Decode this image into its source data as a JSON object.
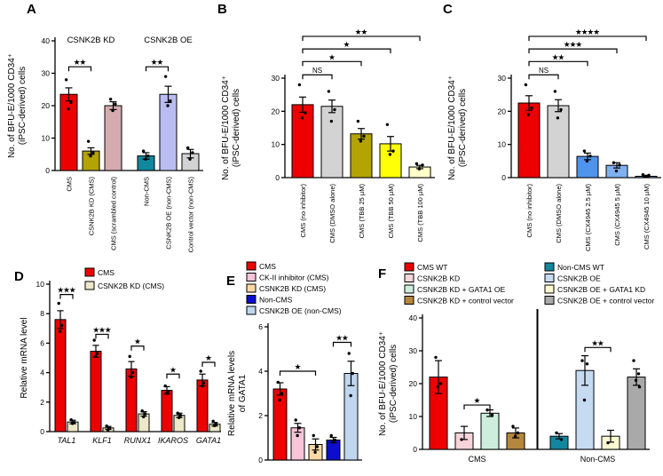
{
  "figure": {
    "background": "#ffffff",
    "text_color": "#000000"
  },
  "panels": [
    {
      "label": "A",
      "chart_data": {
        "type": "bar",
        "ylabel_lines": [
          "No. of BFU-E/1000 CD34⁺",
          "(iPSC-derived) cells"
        ],
        "ylim": [
          0,
          40
        ],
        "yticks": [
          0,
          10,
          20,
          30,
          40
        ],
        "group_titles": [
          {
            "text": "CSNK2B KD",
            "from": 0,
            "to": 2
          },
          {
            "text": "CSNK2B OE",
            "from": 3,
            "to": 5
          }
        ],
        "bars": [
          {
            "label": "CMS",
            "value": 23.5,
            "err": 2,
            "color": "#ee0000",
            "dots": [
              28,
              21,
              19
            ]
          },
          {
            "label": "CSNK2B KD (CMS)",
            "value": 6,
            "err": 1,
            "color": "#b3a303",
            "dots": [
              9,
              5.5,
              4.5
            ]
          },
          {
            "label": "CMS (scrambled control)",
            "value": 20,
            "err": 1.2,
            "color": "#d4abae",
            "dots": [
              22,
              20.5,
              18.5
            ]
          },
          {
            "label": "Non-CMS",
            "value": 4.5,
            "err": 1,
            "color": "#12889e",
            "dots": [
              6,
              4.5,
              3.5
            ],
            "gap": 12
          },
          {
            "label": "CSNK2B OE (non-CMS)",
            "value": 23.5,
            "err": 2.5,
            "color": "#b9bdf2",
            "dots": [
              29,
              21.5,
              20
            ]
          },
          {
            "label": "Control vector (non-CMS)",
            "value": 5.2,
            "err": 1.3,
            "color": "#d3d3d3",
            "dots": [
              7,
              5.5,
              3.5
            ]
          }
        ],
        "brackets": [
          {
            "from": 0,
            "to": 1,
            "y": 32,
            "text": "**"
          },
          {
            "from": 3,
            "to": 4,
            "y": 32,
            "text": "**"
          }
        ]
      }
    },
    {
      "label": "B",
      "chart_data": {
        "type": "bar",
        "ylabel_lines": [
          "No. of BFU-E/1000 CD34⁺",
          "(iPSC-derived) cells"
        ],
        "ylim": [
          0,
          30
        ],
        "yticks": [
          0,
          10,
          20,
          30
        ],
        "bars": [
          {
            "label": "CMS (no inhibitor)",
            "value": 22,
            "err": 2.3,
            "color": "#ee0000",
            "dots": [
              28,
              19.5,
              18
            ]
          },
          {
            "label": "CMS (DMSO alone)",
            "value": 21.5,
            "err": 1.9,
            "color": "#d3d3d3",
            "dots": [
              26,
              20.5,
              17
            ]
          },
          {
            "label": "CMS (TBB 25 µM)",
            "value": 13.2,
            "err": 1.6,
            "color": "#b3a303",
            "dots": [
              17,
              12.5,
              11
            ]
          },
          {
            "label": "CMS (TBB 50 µM)",
            "value": 10.2,
            "err": 2.2,
            "color": "#ffff05",
            "dots": [
              16,
              8,
              7
            ]
          },
          {
            "label": "CMS (TBB 100 µM)",
            "value": 3.2,
            "err": 0.5,
            "color": "#ffffc8",
            "dots": [
              4.2,
              3.8,
              2.6
            ]
          }
        ],
        "brackets": [
          {
            "from": 0,
            "to": 1,
            "y": 31,
            "text": "NS"
          },
          {
            "from": 0,
            "to": 2,
            "y": 35,
            "text": "*"
          },
          {
            "from": 0,
            "to": 3,
            "y": 38.8,
            "text": "*"
          },
          {
            "from": 0,
            "to": 4,
            "y": 42.6,
            "text": "**"
          }
        ]
      }
    },
    {
      "label": "C",
      "chart_data": {
        "type": "bar",
        "ylabel_lines": [
          "No. of BFU-E/1000 CD34⁺",
          "(iPSC-derived) cells"
        ],
        "ylim": [
          0,
          30
        ],
        "yticks": [
          0,
          10,
          20,
          30
        ],
        "bars": [
          {
            "label": "CMS (no inhibitor)",
            "value": 22.5,
            "err": 2.2,
            "color": "#ee0000",
            "dots": [
              28,
              21,
              19
            ]
          },
          {
            "label": "CMS (DMSO alone)",
            "value": 21.7,
            "err": 1.8,
            "color": "#d3d3d3",
            "dots": [
              26,
              20.5,
              18
            ]
          },
          {
            "label": "CMS (CX4945 2.5 µM)",
            "value": 6.4,
            "err": 1,
            "color": "#4f94ec",
            "dots": [
              8,
              6.5,
              5
            ]
          },
          {
            "label": "CMS (CX4945 5 µM)",
            "value": 3.7,
            "err": 0.8,
            "color": "#7fb0f0",
            "dots": [
              4.5,
              3.8,
              2
            ]
          },
          {
            "label": "CMS (CX4945 10 µM)",
            "value": 0.4,
            "err": 0.3,
            "color": "#7fb0f0",
            "dots": [
              0.9,
              0.7,
              0.3
            ]
          }
        ],
        "brackets": [
          {
            "from": 0,
            "to": 1,
            "y": 31,
            "text": "NS"
          },
          {
            "from": 0,
            "to": 2,
            "y": 35,
            "text": "**"
          },
          {
            "from": 0,
            "to": 3,
            "y": 38.8,
            "text": "***"
          },
          {
            "from": 0,
            "to": 4,
            "y": 42.6,
            "text": "****"
          }
        ]
      }
    },
    {
      "label": "D",
      "chart_data": {
        "type": "bar",
        "ylabel_lines": [
          "Relative mRNA level"
        ],
        "ylim": [
          0,
          10
        ],
        "yticks": [
          0,
          2,
          4,
          6,
          8,
          10
        ],
        "legend": [
          {
            "text": "CMS",
            "color": "#ee0000"
          },
          {
            "text": "CSNK2B KD (CMS)",
            "color": "#eee8c8"
          }
        ],
        "categories": [
          {
            "text": "TAL1",
            "from": 0,
            "to": 1
          },
          {
            "text": "KLF1",
            "from": 2,
            "to": 3
          },
          {
            "text": "RUNX1",
            "from": 4,
            "to": 5
          },
          {
            "text": "IKAROS",
            "from": 6,
            "to": 7
          },
          {
            "text": "GATA1",
            "from": 8,
            "to": 9
          }
        ],
        "bars": [
          {
            "value": 7.6,
            "err": 0.6,
            "color": "#ee0000",
            "dots": [
              8.7,
              7.2,
              6.8
            ]
          },
          {
            "value": 0.65,
            "err": 0.12,
            "color": "#eee8c8",
            "dots": [
              0.8,
              0.62,
              0.55
            ]
          },
          {
            "value": 5.45,
            "err": 0.4,
            "color": "#ee0000",
            "dots": [
              6.2,
              5.3,
              5.1
            ],
            "gap": 12
          },
          {
            "value": 0.25,
            "err": 0.1,
            "color": "#eee8c8",
            "dots": [
              0.38,
              0.22,
              0.1
            ]
          },
          {
            "value": 4.25,
            "err": 0.5,
            "color": "#ee0000",
            "dots": [
              5.1,
              4,
              3.7
            ],
            "gap": 12
          },
          {
            "value": 1.2,
            "err": 0.15,
            "color": "#eee8c8",
            "dots": [
              1.4,
              1.2,
              1
            ]
          },
          {
            "value": 2.8,
            "err": 0.25,
            "color": "#ee0000",
            "dots": [
              3.1,
              2.7,
              2.6
            ],
            "gap": 12
          },
          {
            "value": 1.1,
            "err": 0.15,
            "color": "#eee8c8",
            "dots": [
              1.25,
              1.1,
              0.95
            ]
          },
          {
            "value": 3.5,
            "err": 0.4,
            "color": "#ee0000",
            "dots": [
              4.1,
              3.3,
              3.1
            ],
            "gap": 12
          },
          {
            "value": 0.5,
            "err": 0.12,
            "color": "#eee8c8",
            "dots": [
              0.7,
              0.5,
              0.4
            ]
          }
        ],
        "brackets": [
          {
            "from": 0,
            "to": 1,
            "y": 9.3,
            "text": "***"
          },
          {
            "from": 2,
            "to": 3,
            "y": 6.6,
            "text": "***"
          },
          {
            "from": 4,
            "to": 5,
            "y": 5.8,
            "text": "*"
          },
          {
            "from": 6,
            "to": 7,
            "y": 3.9,
            "text": "*"
          },
          {
            "from": 8,
            "to": 9,
            "y": 4.7,
            "text": "*"
          }
        ]
      }
    },
    {
      "label": "E",
      "chart_data": {
        "type": "bar",
        "ylabel_lines": [
          "Relative mRNA levels",
          "of GATA1"
        ],
        "ylim": [
          0,
          6
        ],
        "yticks": [
          0,
          2,
          4,
          6
        ],
        "legend": [
          {
            "text": "CMS",
            "color": "#ee0000"
          },
          {
            "text": "CK-II inhibitor (CMS)",
            "color": "#f8c4d8"
          },
          {
            "text": "CSNK2B KD (CMS)",
            "color": "#fbd8a6"
          },
          {
            "text": "Non-CMS",
            "color": "#0d0dcf"
          },
          {
            "text": "CSNK2B OE (non-CMS)",
            "color": "#c0d6ee"
          }
        ],
        "bars": [
          {
            "value": 3.2,
            "err": 0.28,
            "color": "#ee0000",
            "dots": [
              3.5,
              3,
              2.7
            ]
          },
          {
            "value": 1.45,
            "err": 0.2,
            "color": "#f8c4d8",
            "dots": [
              1.8,
              1.45,
              1.1
            ]
          },
          {
            "value": 0.7,
            "err": 0.25,
            "color": "#fbd8a6",
            "dots": [
              1.1,
              0.6,
              0.35
            ]
          },
          {
            "value": 0.9,
            "err": 0.12,
            "color": "#0d0dcf",
            "dots": [
              1.1,
              0.9,
              0.8
            ]
          },
          {
            "value": 3.9,
            "err": 0.55,
            "color": "#c0d6ee",
            "dots": [
              4.8,
              3.9,
              2.9
            ]
          }
        ],
        "brackets": [
          {
            "from": 0,
            "to": 2,
            "y": 4,
            "text": "*"
          },
          {
            "from": 3,
            "to": 4,
            "y": 5.3,
            "text": "**"
          }
        ]
      }
    },
    {
      "label": "F",
      "chart_data": {
        "type": "bar",
        "ylabel_lines": [
          "No. of BFU-E/1000 CD34⁺",
          "(iPSC-derived) cells"
        ],
        "ylim": [
          0,
          40
        ],
        "yticks": [
          0,
          10,
          20,
          30,
          40
        ],
        "legend": [
          {
            "text": "CMS WT",
            "color": "#ee0000"
          },
          {
            "text": "CSNK2B KD",
            "color": "#f7d4d9"
          },
          {
            "text": "CSNK2B KD + GATA1 OE",
            "color": "#cdeedd"
          },
          {
            "text": "CSNK2B KD + control vector",
            "color": "#b5873e"
          },
          {
            "text": "Non-CMS WT",
            "color": "#12889e"
          },
          {
            "text": "CSNK2B OE",
            "color": "#c6daf2"
          },
          {
            "text": "CSNK2B OE + GATA1 KD",
            "color": "#fbf9d2"
          },
          {
            "text": "CSNK2B OE + control vector",
            "color": "#a9a9a9"
          }
        ],
        "group_labels": [
          {
            "text": "CMS",
            "from": 0,
            "to": 3
          },
          {
            "text": "Non-CMS",
            "from": 4,
            "to": 7
          }
        ],
        "divider_after": 3,
        "bars": [
          {
            "value": 22,
            "err": 5,
            "color": "#ee0000",
            "dots": [
              28,
              20,
              19
            ]
          },
          {
            "value": 5,
            "err": 2,
            "color": "#f7d4d9",
            "dots": [
              3
            ]
          },
          {
            "value": 11,
            "err": 1,
            "color": "#cdeedd",
            "dots": [
              12,
              10.5
            ]
          },
          {
            "value": 5,
            "err": 1.5,
            "color": "#b5873e",
            "dots": [
              7,
              5,
              4
            ]
          },
          {
            "value": 4,
            "err": 0.8,
            "color": "#12889e",
            "dots": [
              5,
              3
            ],
            "gap": 20
          },
          {
            "value": 24,
            "err": 4.5,
            "color": "#c6daf2",
            "dots": [
              27,
              26,
              15
            ]
          },
          {
            "value": 4,
            "err": 1.8,
            "color": "#fbf9d2",
            "dots": [
              2
            ]
          },
          {
            "value": 22,
            "err": 2.5,
            "color": "#a9a9a9",
            "dots": [
              27,
              23,
              21,
              19
            ]
          }
        ],
        "brackets": [
          {
            "from": 1,
            "to": 2,
            "y": 13.5,
            "text": "*"
          },
          {
            "from": 5,
            "to": 6,
            "y": 31,
            "text": "**"
          }
        ]
      }
    }
  ]
}
